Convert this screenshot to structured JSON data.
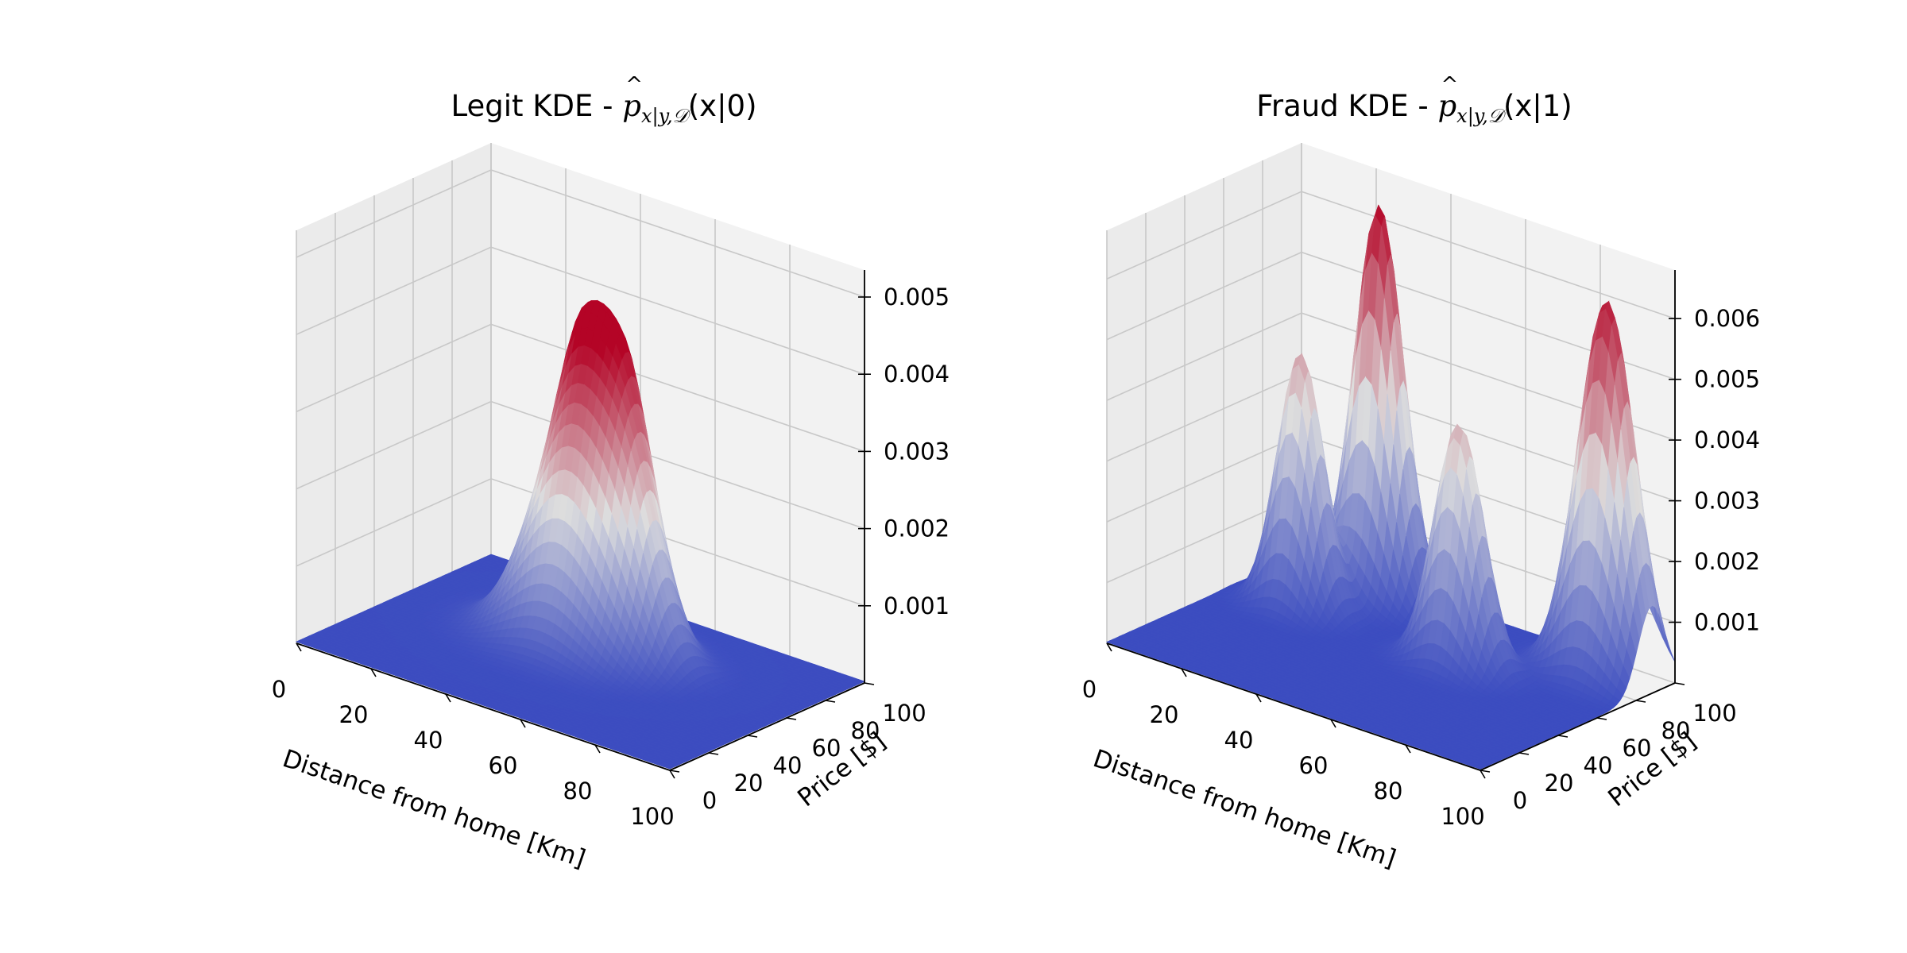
{
  "chart_data": [
    {
      "type": "surface3d",
      "title_prefix": "Legit KDE - ",
      "title_math": "p̂x|y,𝒟(x|0)",
      "title_math_parts": {
        "symbol": "p",
        "subscript": "x|y,𝒟",
        "argument": "(x|0)"
      },
      "xlabel": "Distance from home [Km]",
      "ylabel": "Price [$]",
      "x_ticks": [
        0,
        20,
        40,
        60,
        80,
        100
      ],
      "y_ticks": [
        0,
        20,
        40,
        60,
        80,
        100
      ],
      "z_ticks": [
        0.001,
        0.002,
        0.003,
        0.004,
        0.005
      ],
      "x_range": [
        0,
        100
      ],
      "y_range": [
        0,
        100
      ],
      "z_range": [
        0,
        0.00535
      ],
      "colormap": "coolwarm",
      "colormap_low": "#3b4cc0",
      "colormap_mid": "#dddddd",
      "colormap_high": "#b40426",
      "grid": true,
      "peaks": [
        {
          "x": 45,
          "y": 60,
          "sigma_x": 11,
          "sigma_y": 11,
          "height": 0.0031
        },
        {
          "x": 40,
          "y": 70,
          "sigma_x": 6,
          "sigma_y": 6,
          "height": 0.0018
        },
        {
          "x": 52,
          "y": 72,
          "sigma_x": 6,
          "sigma_y": 6,
          "height": 0.0018
        },
        {
          "x": 60,
          "y": 62,
          "sigma_x": 7,
          "sigma_y": 7,
          "height": 0.0012
        }
      ]
    },
    {
      "type": "surface3d",
      "title_prefix": "Fraud KDE - ",
      "title_math": "p̂x|y,𝒟(x|1)",
      "title_math_parts": {
        "symbol": "p",
        "subscript": "x|y,𝒟",
        "argument": "(x|1)"
      },
      "xlabel": "Distance from home [Km]",
      "ylabel": "Price [$]",
      "x_ticks": [
        0,
        20,
        40,
        60,
        80,
        100
      ],
      "y_ticks": [
        0,
        20,
        40,
        60,
        80,
        100
      ],
      "z_ticks": [
        0.001,
        0.002,
        0.003,
        0.004,
        0.005,
        0.006
      ],
      "x_range": [
        0,
        100
      ],
      "y_range": [
        0,
        100
      ],
      "z_range": [
        0,
        0.0068
      ],
      "colormap": "coolwarm",
      "colormap_low": "#3b4cc0",
      "colormap_mid": "#dddddd",
      "colormap_high": "#b40426",
      "grid": true,
      "peaks": [
        {
          "x": 18,
          "y": 65,
          "sigma_x": 5.5,
          "sigma_y": 6,
          "height": 0.0042
        },
        {
          "x": 27,
          "y": 88,
          "sigma_x": 6,
          "sigma_y": 6,
          "height": 0.0065
        },
        {
          "x": 62,
          "y": 62,
          "sigma_x": 6,
          "sigma_y": 6,
          "height": 0.004
        },
        {
          "x": 88,
          "y": 88,
          "sigma_x": 7,
          "sigma_y": 7,
          "height": 0.0062
        }
      ]
    }
  ]
}
